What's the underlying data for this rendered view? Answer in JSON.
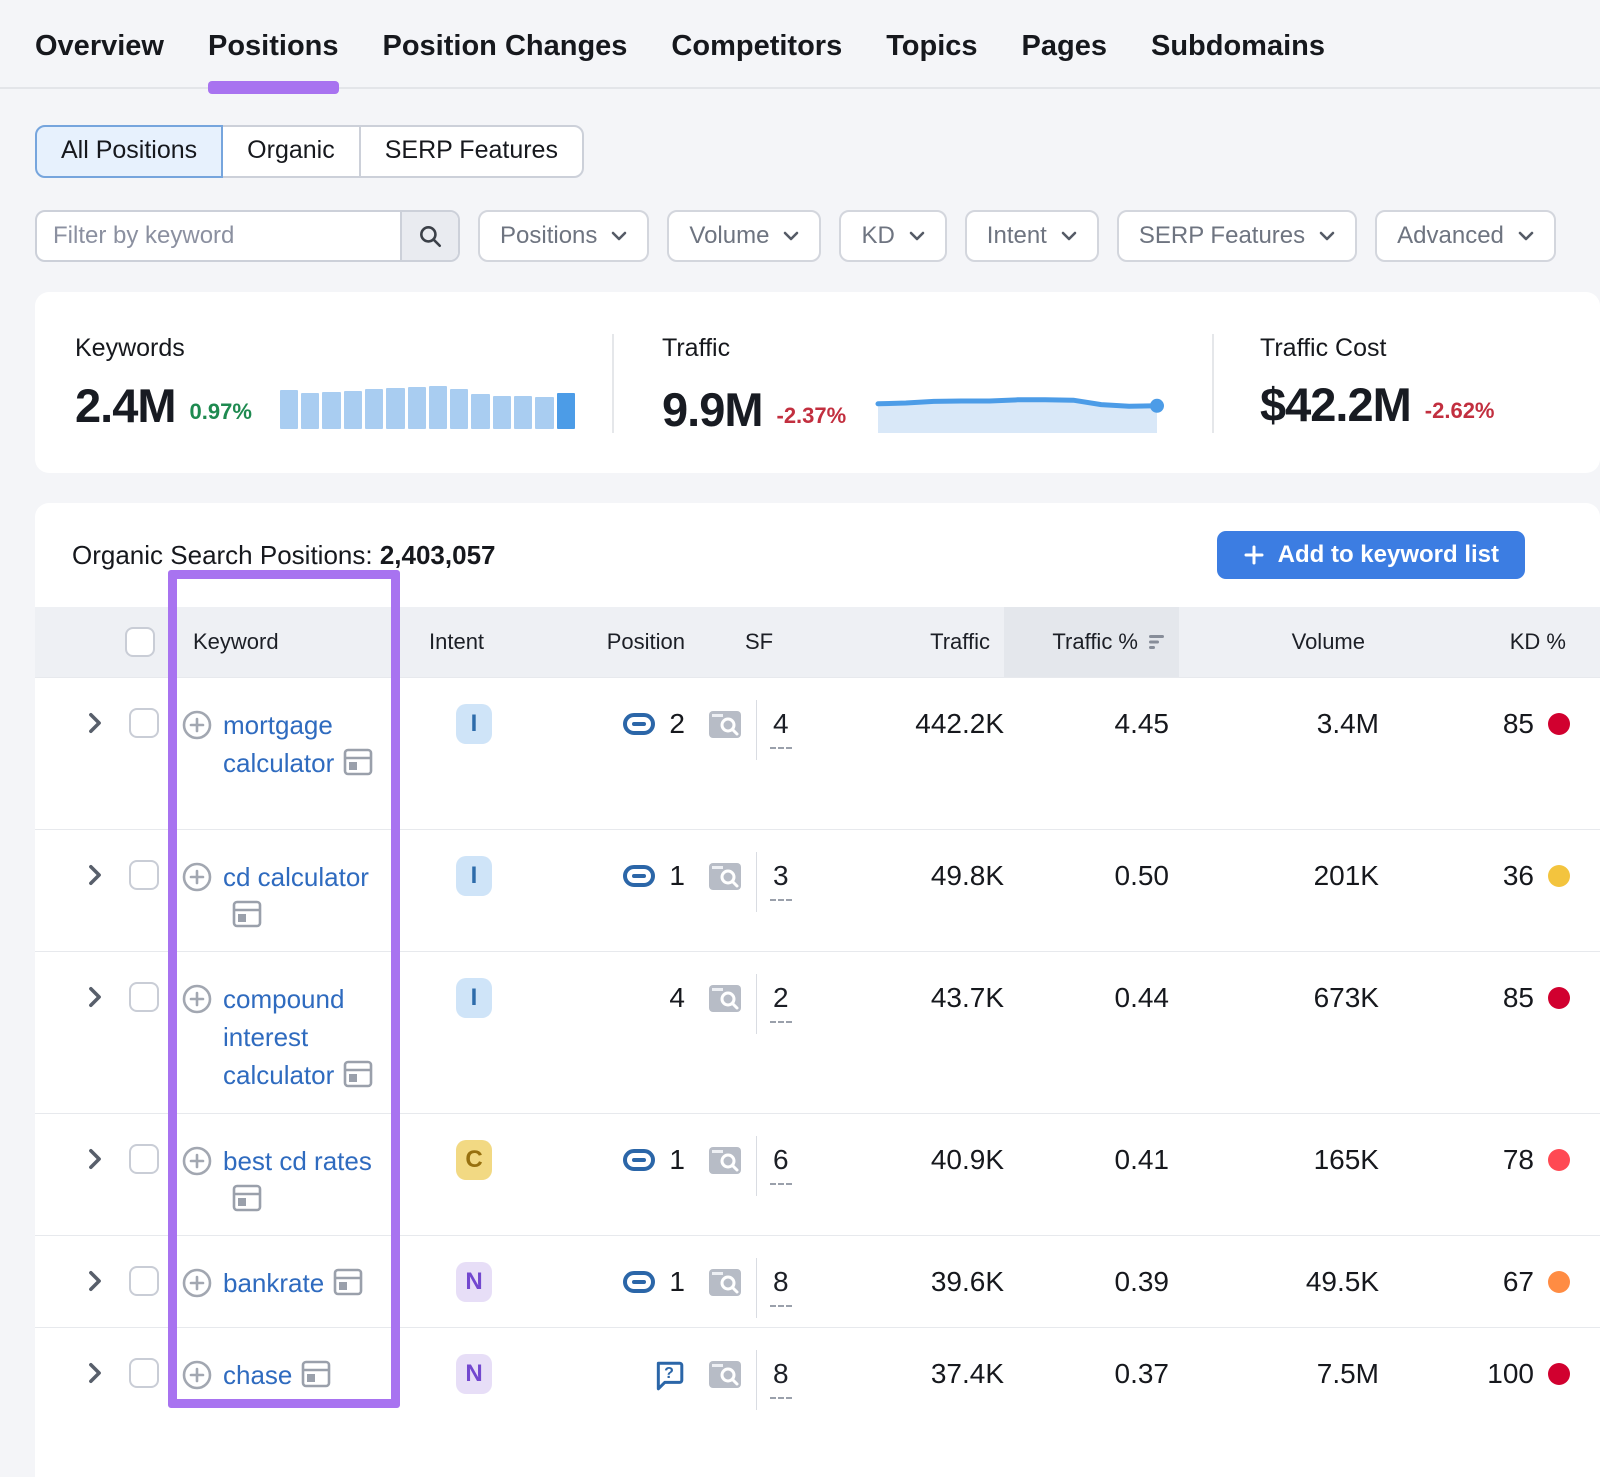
{
  "nav": {
    "items": [
      {
        "label": "Overview",
        "active": false
      },
      {
        "label": "Positions",
        "active": true
      },
      {
        "label": "Position Changes",
        "active": false
      },
      {
        "label": "Competitors",
        "active": false
      },
      {
        "label": "Topics",
        "active": false
      },
      {
        "label": "Pages",
        "active": false
      },
      {
        "label": "Subdomains",
        "active": false
      }
    ]
  },
  "tabs": {
    "items": [
      {
        "label": "All Positions",
        "selected": true
      },
      {
        "label": "Organic",
        "selected": false
      },
      {
        "label": "SERP Features",
        "selected": false
      }
    ]
  },
  "filters": {
    "search_placeholder": "Filter by keyword",
    "dropdowns": [
      {
        "label": "Positions"
      },
      {
        "label": "Volume"
      },
      {
        "label": "KD"
      },
      {
        "label": "Intent"
      },
      {
        "label": "SERP Features"
      },
      {
        "label": "Advanced"
      }
    ]
  },
  "stats": {
    "keywords": {
      "label": "Keywords",
      "value": "2.4M",
      "change": "0.97%",
      "change_style": "color:#1e8a50"
    },
    "traffic": {
      "label": "Traffic",
      "value": "9.9M",
      "change": "-2.37%",
      "change_style": "color:#c22f3f"
    },
    "traffic_cost": {
      "label": "Traffic Cost",
      "value": "$42.2M",
      "change": "-2.62%",
      "change_style": "color:#c22f3f"
    }
  },
  "chart_data": [
    {
      "type": "bar",
      "name": "keywords-trend",
      "title": "Keywords trend sparkline",
      "values": [
        82,
        76,
        78,
        80,
        83,
        85,
        87,
        90,
        84,
        72,
        68,
        68,
        66,
        74
      ],
      "bar_color": "#a9cdf1",
      "highlight_color": "#4c9ce7",
      "highlight_index": 13
    },
    {
      "type": "area",
      "name": "traffic-trend",
      "title": "Traffic trend sparkline",
      "values": [
        58,
        60,
        64,
        65,
        65,
        68,
        68,
        67,
        56,
        52,
        53
      ],
      "line_color": "#4c9ce7",
      "fill_color": "#d9e8f8"
    }
  ],
  "table": {
    "title_label": "Organic Search Positions:",
    "title_count": "2,403,057",
    "add_button_label": "Add to keyword list",
    "columns": {
      "keyword": "Keyword",
      "intent": "Intent",
      "position": "Position",
      "sf": "SF",
      "traffic": "Traffic",
      "traffic_pct": "Traffic %",
      "volume": "Volume",
      "kd": "KD %"
    },
    "sorted_column": "Traffic %",
    "rows": [
      {
        "keyword": "mortgage calculator",
        "intent": "I",
        "intent_style": "background:#cfe4f8;color:#2e6cab",
        "position": "2",
        "sf": "4",
        "traffic": "442.2K",
        "traffic_pct": "4.45",
        "volume": "3.4M",
        "kd": "85",
        "kd_dot_style": "background:#d1002f"
      },
      {
        "keyword": "cd calculator",
        "intent": "I",
        "intent_style": "background:#cfe4f8;color:#2e6cab",
        "position": "1",
        "sf": "3",
        "traffic": "49.8K",
        "traffic_pct": "0.50",
        "volume": "201K",
        "kd": "36",
        "kd_dot_style": "background:#f3c43e"
      },
      {
        "keyword": "compound interest calculator",
        "intent": "I",
        "intent_style": "background:#cfe4f8;color:#2e6cab",
        "position": "4",
        "sf": "2",
        "traffic": "43.7K",
        "traffic_pct": "0.44",
        "volume": "673K",
        "kd": "85",
        "kd_dot_style": "background:#d1002f"
      },
      {
        "keyword": "best cd rates",
        "intent": "C",
        "intent_style": "background:#f2d983;color:#97700f",
        "position": "1",
        "sf": "6",
        "traffic": "40.9K",
        "traffic_pct": "0.41",
        "volume": "165K",
        "kd": "78",
        "kd_dot_style": "background:#ff4953"
      },
      {
        "keyword": "bankrate",
        "intent": "N",
        "intent_style": "background:#e7def7;color:#7348cf",
        "position": "1",
        "sf": "8",
        "traffic": "39.6K",
        "traffic_pct": "0.39",
        "volume": "49.5K",
        "kd": "67",
        "kd_dot_style": "background:#ff8c43"
      },
      {
        "keyword": "chase",
        "intent": "N",
        "intent_style": "background:#e7def7;color:#7348cf",
        "position": "",
        "sf": "8",
        "traffic": "37.4K",
        "traffic_pct": "0.37",
        "volume": "7.5M",
        "kd": "100",
        "kd_dot_style": "background:#d1002f"
      }
    ]
  }
}
